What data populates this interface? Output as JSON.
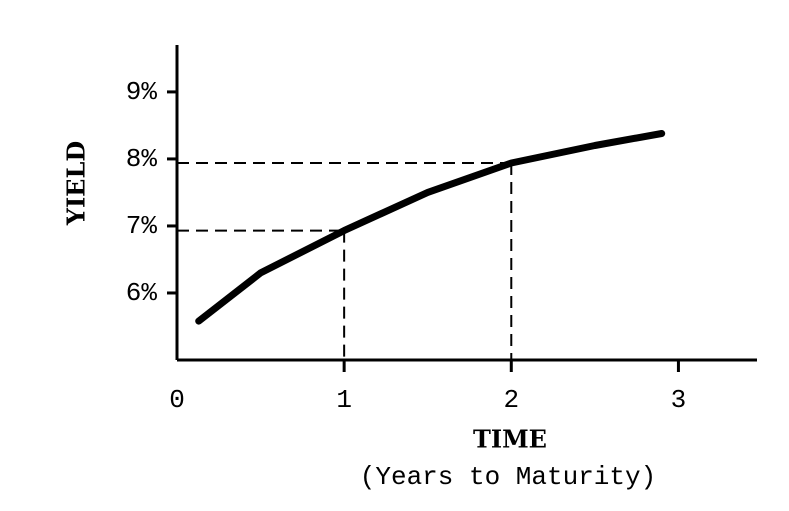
{
  "chart_data": {
    "type": "line",
    "x_label": "TIME",
    "x_sublabel": "(Years to Maturity)",
    "y_label": "YIELD",
    "x": [
      0.13,
      0.5,
      1,
      1.5,
      2,
      2.5,
      2.9
    ],
    "series": [
      {
        "color": "#000000",
        "values": [
          5.58,
          6.3,
          6.93,
          7.5,
          7.94,
          8.2,
          8.38
        ]
      }
    ],
    "xlim": [
      0,
      3.5
    ],
    "ylim": [
      5,
      9.7
    ],
    "xticks": [
      0,
      1,
      2,
      3
    ],
    "yticks": [
      {
        "value": 6,
        "label": "6%"
      },
      {
        "value": 7,
        "label": "7%"
      },
      {
        "value": 8,
        "label": "8%"
      },
      {
        "value": 9,
        "label": "9%"
      }
    ]
  }
}
